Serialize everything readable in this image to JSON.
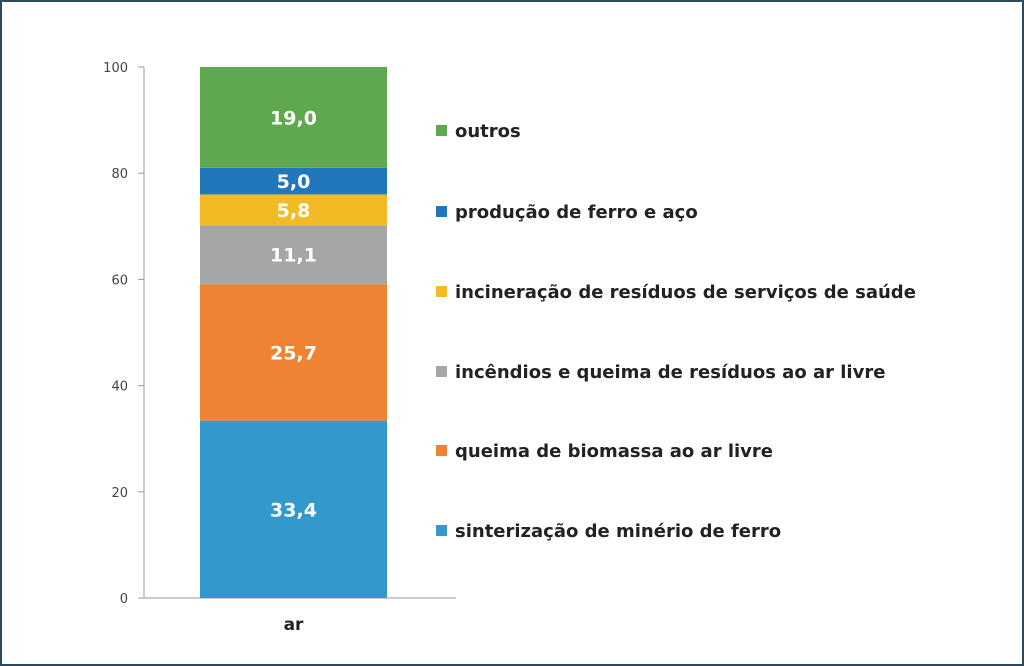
{
  "chart_data": {
    "type": "bar",
    "stacked": true,
    "categories": [
      "ar"
    ],
    "ylim": [
      0,
      100
    ],
    "yticks": [
      "0",
      "20",
      "40",
      "60",
      "80",
      "100"
    ],
    "legend_position": "right",
    "series": [
      {
        "name": "sinterização de minério de ferro",
        "values": [
          33.4
        ],
        "label": "33,4",
        "color": "#3399cc"
      },
      {
        "name": "queima de biomassa ao ar livre",
        "values": [
          25.7
        ],
        "label": "25,7",
        "color": "#ee8433"
      },
      {
        "name": "incêndios e queima de resíduos ao ar livre",
        "values": [
          11.1
        ],
        "label": "11,1",
        "color": "#a6a6a6"
      },
      {
        "name": "incineração de resíduos de serviços de saúde",
        "values": [
          5.8
        ],
        "label": "5,8",
        "color": "#f2bb26"
      },
      {
        "name": "produção de ferro e aço",
        "values": [
          5.0
        ],
        "label": "5,0",
        "color": "#2277bb"
      },
      {
        "name": "outros",
        "values": [
          19.0
        ],
        "label": "19,0",
        "color": "#5fa84f"
      }
    ]
  }
}
